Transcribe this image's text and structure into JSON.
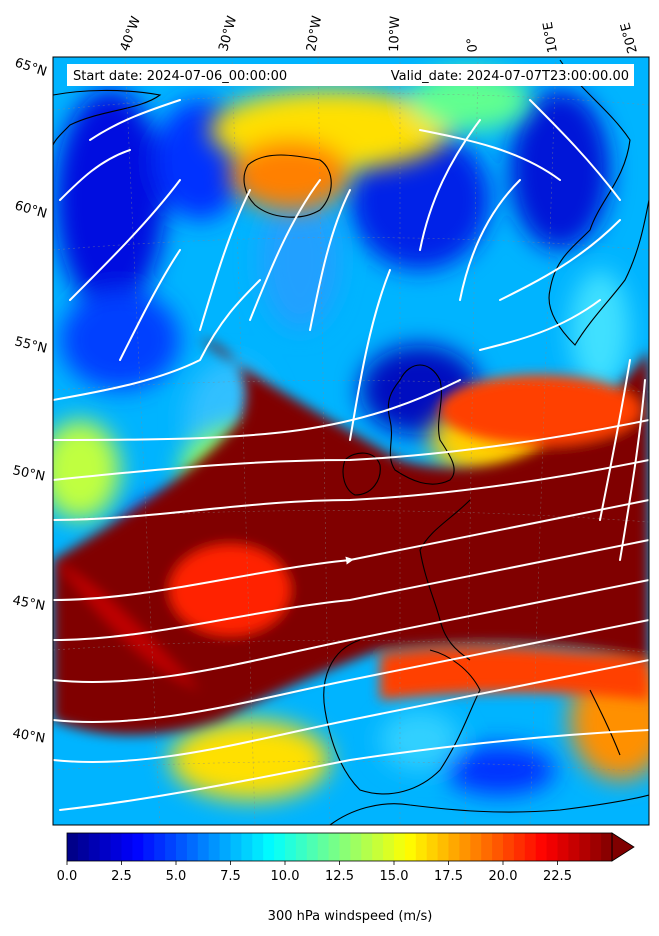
{
  "map": {
    "start_date_label": "Start date: 2024-07-06_00:00:00",
    "valid_date_label": "Valid_date: 2024-07-07T23:00:00.00",
    "longitude_labels": [
      "40°W",
      "30°W",
      "20°W",
      "10°W",
      "0°",
      "10°E",
      "20°E"
    ],
    "latitude_labels": [
      "65°N",
      "60°N",
      "55°N",
      "50°N",
      "45°N",
      "40°N"
    ],
    "field": "300 hPa windspeed",
    "streamline_color": "#ffffff",
    "coastline_color": "#000000"
  },
  "colorbar": {
    "title": "300 hPa windspeed (m/s)",
    "colormap": "jet",
    "min": 0.0,
    "max": 25.0,
    "step": 0.5,
    "extend": "max",
    "tick_labels": [
      "0.0",
      "2.5",
      "5.0",
      "7.5",
      "10.0",
      "12.5",
      "15.0",
      "17.5",
      "20.0",
      "22.5"
    ],
    "over_color": "#800000"
  }
}
